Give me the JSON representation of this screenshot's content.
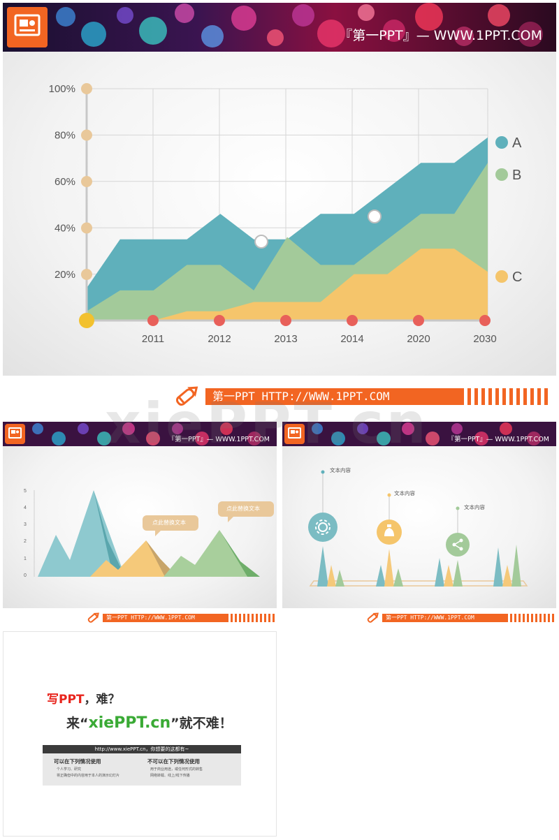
{
  "header": {
    "title": "『第一PPT』— WWW.1PPT.COM",
    "small_title": "『第一PPT』— WWW.1PPT.COM"
  },
  "footer": {
    "text": "第一PPT HTTP://WWW.1PPT.COM"
  },
  "watermark": "xiePPT.cn",
  "colors": {
    "accent_orange": "#f26522",
    "teal": "#5fb0bb",
    "green": "#a3ca9a",
    "yellow": "#f5c56b",
    "red_dot": "#e8605a",
    "tan_dot": "#e9c89a"
  },
  "slide1": {
    "chart_data": {
      "type": "area",
      "categories": [
        "",
        "",
        "2011",
        "",
        "2012",
        "",
        "2013",
        "",
        "2014",
        "",
        "2020",
        "",
        "2030"
      ],
      "x_tick_labels": [
        "2011",
        "2012",
        "2013",
        "2014",
        "2020",
        "2030"
      ],
      "y_tick_labels": [
        "100%",
        "80%",
        "60%",
        "40%",
        "20%"
      ],
      "ylim": [
        0,
        100
      ],
      "series": [
        {
          "name": "A",
          "values": [
            14,
            35,
            35,
            35,
            46,
            35,
            35,
            46,
            46,
            57,
            68,
            68,
            79
          ]
        },
        {
          "name": "B",
          "values": [
            4,
            13,
            13,
            24,
            24,
            13,
            36,
            24,
            24,
            35,
            46,
            46,
            68
          ]
        },
        {
          "name": "C",
          "values": [
            0,
            0,
            0,
            4,
            4,
            8,
            8,
            8,
            20,
            20,
            31,
            31,
            21
          ]
        }
      ],
      "grid": true,
      "legend": "right"
    }
  },
  "slide2": {
    "y_tick_labels": [
      "5",
      "4",
      "3",
      "2",
      "1",
      "0"
    ],
    "callouts": [
      "点此替换文本",
      "点此替换文本"
    ]
  },
  "slide3": {
    "labels": [
      "文本内容",
      "文本内容",
      "文本内容"
    ],
    "icons": [
      "gear-icon",
      "money-bag-icon",
      "share-icon"
    ]
  },
  "slide4": {
    "line1_red": "写PPT",
    "line1_rest": "，难？",
    "line2_pre": "来“",
    "line2_green": "xiePPT.cn",
    "line2_post": "”就不难！",
    "bar_text": "http://www.xiePPT.cn，你想要的这都有~",
    "left_title": "可以在下列情况使用",
    "left_items": [
      "个人学习、研究",
      "将正确但中的内容用于本人的演示幻灯片"
    ],
    "right_title": "不可以在下列情况使用",
    "right_items": [
      "用于商业用途，或任何形式的转售",
      "网络转载、线上/线下传播"
    ]
  }
}
